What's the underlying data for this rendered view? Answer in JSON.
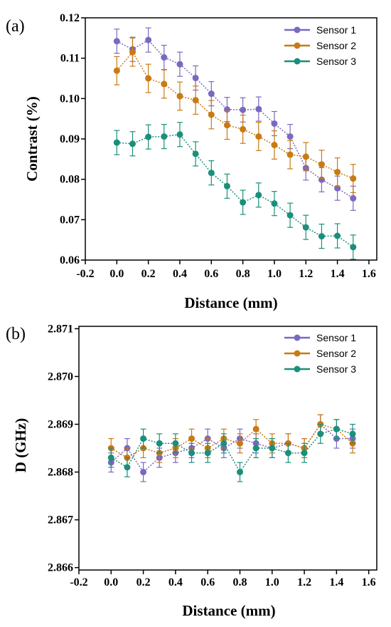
{
  "chart_data": [
    {
      "type": "line",
      "panel_label": "(a)",
      "xlabel": "Distance (mm)",
      "ylabel": "Contrast (%)",
      "xlim": [
        -0.2,
        1.65
      ],
      "ylim": [
        0.06,
        0.12
      ],
      "xticks": [
        "-0.2",
        "0.0",
        "0.2",
        "0.4",
        "0.6",
        "0.8",
        "1.0",
        "1.2",
        "1.4",
        "1.6"
      ],
      "yticks": [
        "0.06",
        "0.07",
        "0.08",
        "0.09",
        "0.10",
        "0.11",
        "0.12"
      ],
      "legend_position": "top-right",
      "x": [
        0.0,
        0.1,
        0.2,
        0.3,
        0.4,
        0.5,
        0.6,
        0.7,
        0.8,
        0.9,
        1.0,
        1.1,
        1.2,
        1.3,
        1.4,
        1.5
      ],
      "series": [
        {
          "name": "Sensor 1",
          "color": "#7b68c0",
          "error": 0.003,
          "values": [
            0.1142,
            0.1122,
            0.1145,
            0.1102,
            0.1085,
            0.1051,
            0.1012,
            0.0973,
            0.0972,
            0.0974,
            0.0938,
            0.0906,
            0.0828,
            0.0799,
            0.0778,
            0.0753
          ]
        },
        {
          "name": "Sensor 2",
          "color": "#c87a14",
          "error": 0.0035,
          "values": [
            0.1069,
            0.1115,
            0.105,
            0.1036,
            0.1006,
            0.0996,
            0.096,
            0.0934,
            0.0924,
            0.0906,
            0.0885,
            0.0861,
            0.0856,
            0.0837,
            0.0818,
            0.0802
          ]
        },
        {
          "name": "Sensor 3",
          "color": "#1a8f7a",
          "error": 0.003,
          "values": [
            0.0891,
            0.0888,
            0.0905,
            0.0906,
            0.0911,
            0.0863,
            0.0816,
            0.0783,
            0.0743,
            0.0761,
            0.074,
            0.0711,
            0.0681,
            0.0659,
            0.066,
            0.0632
          ]
        }
      ]
    },
    {
      "type": "line",
      "panel_label": "(b)",
      "xlabel": "Distance (mm)",
      "ylabel": "D (GHz)",
      "xlim": [
        -0.2,
        1.65
      ],
      "ylim": [
        2.86595,
        2.87105
      ],
      "xticks": [
        "-0.2",
        "0.0",
        "0.2",
        "0.4",
        "0.6",
        "0.8",
        "1.0",
        "1.2",
        "1.4",
        "1.6"
      ],
      "yticks": [
        "2.866",
        "2.867",
        "2.868",
        "2.869",
        "2.870",
        "2.871"
      ],
      "legend_position": "top-right",
      "x": [
        0.0,
        0.1,
        0.2,
        0.3,
        0.4,
        0.5,
        0.6,
        0.7,
        0.8,
        0.9,
        1.0,
        1.1,
        1.2,
        1.3,
        1.4,
        1.5
      ],
      "series": [
        {
          "name": "Sensor 1",
          "color": "#7b68c0",
          "error": 0.0002,
          "values": [
            2.8682,
            2.8685,
            2.868,
            2.8683,
            2.8684,
            2.8685,
            2.8687,
            2.8685,
            2.8687,
            2.8686,
            2.8685,
            2.8686,
            2.8685,
            2.869,
            2.8687,
            2.8687
          ]
        },
        {
          "name": "Sensor 2",
          "color": "#c87a14",
          "error": 0.0002,
          "values": [
            2.8685,
            2.8683,
            2.8685,
            2.8684,
            2.8685,
            2.8687,
            2.8685,
            2.8687,
            2.8686,
            2.8689,
            2.8686,
            2.8686,
            2.8685,
            2.869,
            2.8689,
            2.8686
          ]
        },
        {
          "name": "Sensor 3",
          "color": "#1a8f7a",
          "error": 0.0002,
          "values": [
            2.8683,
            2.8681,
            2.8687,
            2.8686,
            2.8686,
            2.8684,
            2.8684,
            2.8686,
            2.868,
            2.8685,
            2.8685,
            2.8684,
            2.8684,
            2.8688,
            2.8689,
            2.8688
          ]
        }
      ]
    }
  ]
}
